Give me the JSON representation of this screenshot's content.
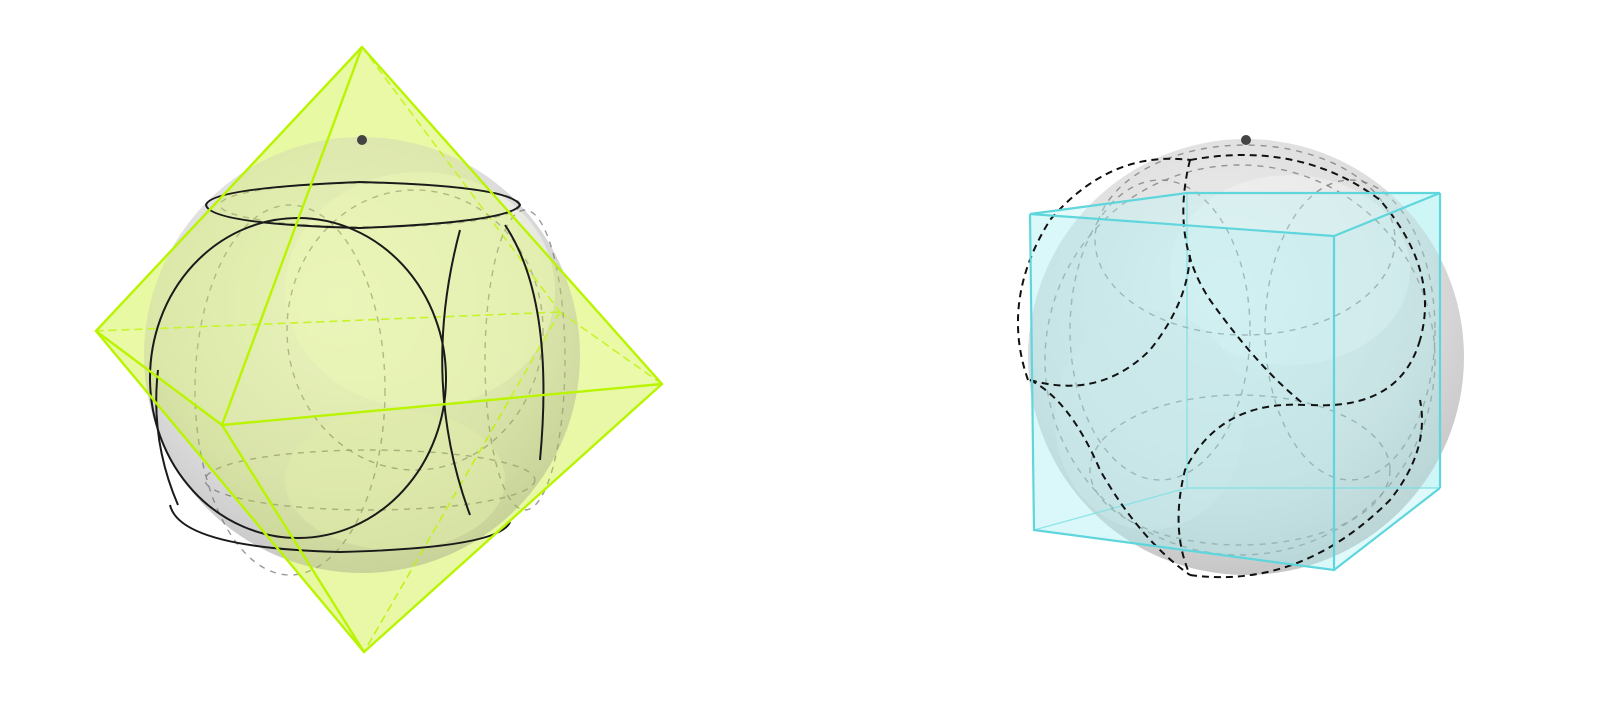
{
  "figures": [
    {
      "id": "octahedron-sphere",
      "solid": "octahedron",
      "sphere": "circumscribed-mid-sphere",
      "solid_color": "#b9f400",
      "solid_fill_color": "#d9f56a",
      "sphere_color": "#d4d4d4",
      "circle_color": "#1a1a1a",
      "has_pole_point": true
    },
    {
      "id": "cube-sphere",
      "solid": "cube",
      "sphere": "circumscribed-mid-sphere",
      "solid_color": "#5fd6dc",
      "solid_fill_color": "#a8eef1",
      "sphere_color": "#d4d4d4",
      "circle_color": "#111111",
      "has_pole_point": true
    }
  ]
}
